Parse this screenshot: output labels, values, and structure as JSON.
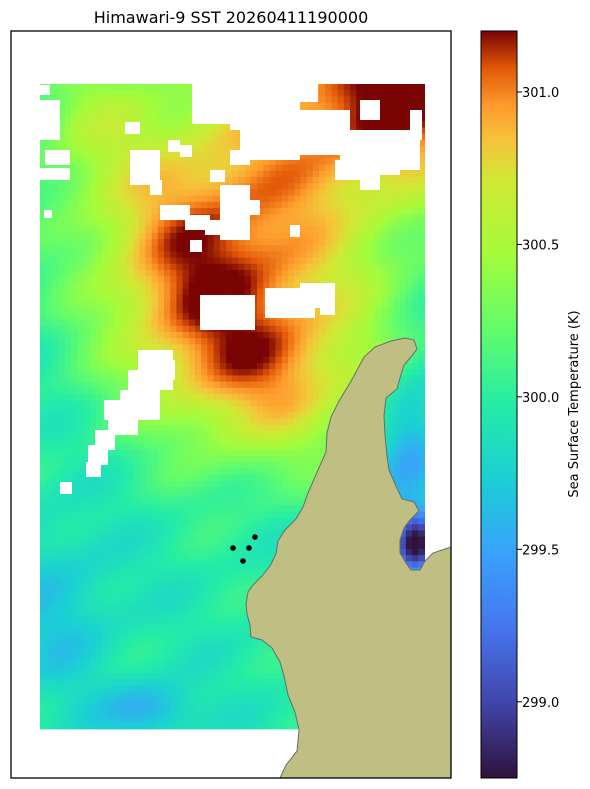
{
  "chart_data": {
    "type": "heatmap",
    "title": "Himawari-9 SST 20260411190000",
    "colorbar": {
      "label": "Sea Surface Temperature (K)",
      "range": [
        298.75,
        301.2
      ],
      "ticks": [
        299.0,
        299.5,
        300.0,
        300.5,
        301.0
      ],
      "tick_labels": [
        "299.0",
        "299.5",
        "300.0",
        "300.5",
        "301.0"
      ],
      "colormap": "turbo"
    },
    "field": {
      "description_values": {
        "northeast_max": 301.2,
        "central_warm_band": 300.8,
        "western_edge": 300.2,
        "southwest": 299.9,
        "south_pool_min": 299.4,
        "east_strait_min": 298.9
      }
    },
    "land_color": "#bfbf84",
    "cloud_mask_color": "#ffffff",
    "markers": {
      "count": 4,
      "color": "#000000"
    },
    "grid": false,
    "legend": "colorbar-right"
  }
}
